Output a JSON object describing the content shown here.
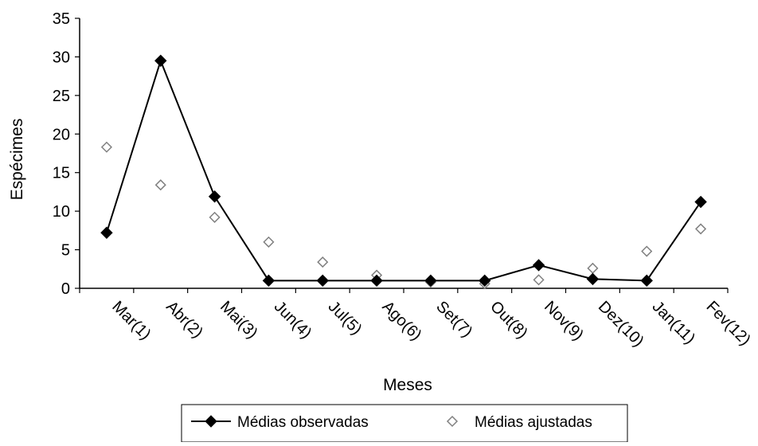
{
  "chart_data": {
    "type": "line",
    "title": "",
    "xlabel": "Meses",
    "ylabel": "Espécimes",
    "categories": [
      "Mar(1)",
      "Abr(2)",
      "Mai(3)",
      "Jun(4)",
      "Jul(5)",
      "Ago(6)",
      "Set(7)",
      "Out(8)",
      "Nov(9)",
      "Dez(10)",
      "Jan(11)",
      "Fev(12)"
    ],
    "ylim": [
      0,
      35
    ],
    "yticks": [
      "0",
      "5",
      "10",
      "15",
      "20",
      "25",
      "30",
      "35"
    ],
    "grid": false,
    "legend_position": "bottom",
    "series": [
      {
        "name": "Médias observadas",
        "style": "line-filled-diamond",
        "color": "#000000",
        "values": [
          7.2,
          29.5,
          11.9,
          1.0,
          1.0,
          1.0,
          1.0,
          1.0,
          3.0,
          1.2,
          1.0,
          11.2
        ]
      },
      {
        "name": "Médias ajustadas",
        "style": "hollow-diamond",
        "color": "#808080",
        "values": [
          18.3,
          13.4,
          9.2,
          6.0,
          3.4,
          1.7,
          0.8,
          0.6,
          1.1,
          2.6,
          4.8,
          7.7
        ]
      }
    ]
  }
}
